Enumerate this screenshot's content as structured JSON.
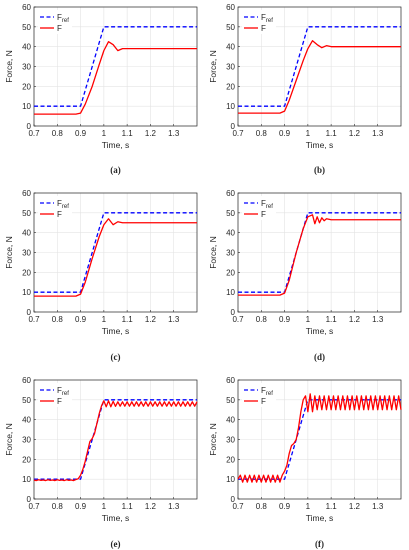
{
  "chart_data": [
    {
      "type": "line",
      "caption": "(a)",
      "xlabel": "Time, s",
      "ylabel": "Force, N",
      "xlim": [
        0.7,
        1.4
      ],
      "ylim": [
        0,
        60
      ],
      "xticks": [
        0.7,
        0.8,
        0.9,
        1,
        1.1,
        1.2,
        1.3
      ],
      "yticks": [
        0,
        10,
        20,
        30,
        40,
        50,
        60
      ],
      "grid": true,
      "legend_placement": "top-left",
      "series": [
        {
          "name": "F ref",
          "name_base": "F",
          "name_sub": "ref",
          "style": "dashed",
          "color": "#0000ff",
          "x": [
            0.7,
            0.9,
            1.0,
            1.4
          ],
          "y": [
            10,
            10,
            50,
            50
          ]
        },
        {
          "name": "F",
          "style": "solid",
          "color": "#ff0000",
          "x": [
            0.7,
            0.88,
            0.9,
            0.92,
            0.95,
            0.98,
            1.0,
            1.02,
            1.04,
            1.06,
            1.08,
            1.1,
            1.4
          ],
          "y": [
            6,
            6,
            6.5,
            11,
            20,
            31,
            38,
            42.5,
            41,
            38,
            39,
            39,
            39
          ]
        }
      ]
    },
    {
      "type": "line",
      "caption": "(b)",
      "xlabel": "Time, s",
      "ylabel": "Force, N",
      "xlim": [
        0.7,
        1.4
      ],
      "ylim": [
        0,
        60
      ],
      "xticks": [
        0.7,
        0.8,
        0.9,
        1,
        1.1,
        1.2,
        1.3
      ],
      "yticks": [
        0,
        10,
        20,
        30,
        40,
        50,
        60
      ],
      "grid": true,
      "legend_placement": "top-left",
      "series": [
        {
          "name": "F ref",
          "name_base": "F",
          "name_sub": "ref",
          "style": "dashed",
          "color": "#0000ff",
          "x": [
            0.7,
            0.9,
            1.0,
            1.4
          ],
          "y": [
            10,
            10,
            50,
            50
          ]
        },
        {
          "name": "F",
          "style": "solid",
          "color": "#ff0000",
          "x": [
            0.7,
            0.88,
            0.9,
            0.92,
            0.95,
            0.98,
            1.0,
            1.02,
            1.04,
            1.06,
            1.08,
            1.1,
            1.4
          ],
          "y": [
            6.5,
            6.5,
            7.5,
            13,
            23,
            33,
            39,
            43,
            41,
            39.5,
            40.5,
            40,
            40
          ]
        }
      ]
    },
    {
      "type": "line",
      "caption": "(c)",
      "xlabel": "Time, s",
      "ylabel": "Force, N",
      "xlim": [
        0.7,
        1.4
      ],
      "ylim": [
        0,
        60
      ],
      "xticks": [
        0.7,
        0.8,
        0.9,
        1,
        1.1,
        1.2,
        1.3
      ],
      "yticks": [
        0,
        10,
        20,
        30,
        40,
        50,
        60
      ],
      "grid": true,
      "legend_placement": "top-left",
      "series": [
        {
          "name": "F ref",
          "name_base": "F",
          "name_sub": "ref",
          "style": "dashed",
          "color": "#0000ff",
          "x": [
            0.7,
            0.9,
            1.0,
            1.4
          ],
          "y": [
            10,
            10,
            50,
            50
          ]
        },
        {
          "name": "F",
          "style": "solid",
          "color": "#ff0000",
          "x": [
            0.7,
            0.88,
            0.9,
            0.92,
            0.95,
            0.98,
            1.0,
            1.02,
            1.04,
            1.06,
            1.08,
            1.1,
            1.4
          ],
          "y": [
            8,
            8,
            9,
            15,
            27,
            38,
            44,
            47,
            44,
            45.5,
            45,
            45,
            45
          ]
        }
      ]
    },
    {
      "type": "line",
      "caption": "(d)",
      "xlabel": "Time, s",
      "ylabel": "Force, N",
      "xlim": [
        0.7,
        1.4
      ],
      "ylim": [
        0,
        60
      ],
      "xticks": [
        0.7,
        0.8,
        0.9,
        1,
        1.1,
        1.2,
        1.3
      ],
      "yticks": [
        0,
        10,
        20,
        30,
        40,
        50,
        60
      ],
      "grid": true,
      "legend_placement": "top-left",
      "series": [
        {
          "name": "F ref",
          "name_base": "F",
          "name_sub": "ref",
          "style": "dashed",
          "color": "#0000ff",
          "x": [
            0.7,
            0.9,
            1.0,
            1.4
          ],
          "y": [
            10,
            10,
            50,
            50
          ]
        },
        {
          "name": "F",
          "style": "solid",
          "color": "#ff0000",
          "x": [
            0.7,
            0.88,
            0.9,
            0.92,
            0.95,
            0.98,
            1.0,
            1.02,
            1.03,
            1.04,
            1.05,
            1.06,
            1.07,
            1.08,
            1.1,
            1.4
          ],
          "y": [
            8.5,
            8.5,
            9.5,
            16,
            30,
            42,
            48,
            49,
            44.5,
            48,
            45,
            47.5,
            46,
            47,
            46.5,
            46.5
          ]
        }
      ]
    },
    {
      "type": "line",
      "caption": "(e)",
      "xlabel": "Time, s",
      "ylabel": "Force, N",
      "xlim": [
        0.7,
        1.4
      ],
      "ylim": [
        0,
        60
      ],
      "xticks": [
        0.7,
        0.8,
        0.9,
        1,
        1.1,
        1.2,
        1.3
      ],
      "yticks": [
        0,
        10,
        20,
        30,
        40,
        50,
        60
      ],
      "grid": true,
      "legend_placement": "top-left",
      "series": [
        {
          "name": "F ref",
          "name_base": "F",
          "name_sub": "ref",
          "style": "dashed",
          "color": "#0000ff",
          "x": [
            0.7,
            0.9,
            1.0,
            1.4
          ],
          "y": [
            10,
            10,
            50,
            50
          ]
        },
        {
          "name": "F",
          "style": "solid",
          "color": "#ff0000",
          "x_start": 0.7,
          "x_step": 0.01,
          "y": [
            9.5,
            9.3,
            9.7,
            9.4,
            9.6,
            9.3,
            9.7,
            9.4,
            9.6,
            9.3,
            9.7,
            9.4,
            9.6,
            9.3,
            9.7,
            9.4,
            9.6,
            9.3,
            9.8,
            10.2,
            12,
            15,
            19,
            24,
            29,
            30.5,
            33,
            38,
            43,
            47,
            49.5,
            46.5,
            49.5,
            46.5,
            49.2,
            46.7,
            49,
            46.8,
            49,
            46.8,
            49,
            46.8,
            49,
            46.8,
            49,
            46.8,
            49,
            46.8,
            49,
            46.8,
            49,
            46.8,
            49,
            46.8,
            49,
            46.8,
            49,
            46.8,
            49,
            46.8,
            49,
            46.8,
            49,
            46.8,
            49,
            46.8,
            49,
            46.8,
            49,
            46.8,
            49
          ]
        }
      ]
    },
    {
      "type": "line",
      "caption": "(f)",
      "xlabel": "Time, s",
      "ylabel": "Force, N",
      "xlim": [
        0.7,
        1.4
      ],
      "ylim": [
        0,
        60
      ],
      "xticks": [
        0.7,
        0.8,
        0.9,
        1,
        1.1,
        1.2,
        1.3
      ],
      "yticks": [
        0,
        10,
        20,
        30,
        40,
        50,
        60
      ],
      "grid": true,
      "legend_placement": "top-left",
      "series": [
        {
          "name": "F ref",
          "name_base": "F",
          "name_sub": "ref",
          "style": "dashed",
          "color": "#0000ff",
          "x": [
            0.7,
            0.9,
            1.0,
            1.4
          ],
          "y": [
            10,
            10,
            50,
            50
          ]
        },
        {
          "name": "F",
          "style": "solid",
          "color": "#ff0000",
          "x_start": 0.7,
          "x_step": 0.01,
          "y": [
            10,
            12,
            8.5,
            12,
            8.5,
            12,
            8.5,
            12,
            8.5,
            12,
            8.5,
            12,
            8.5,
            12,
            8.5,
            12,
            8.5,
            12,
            8.5,
            12,
            14,
            17,
            23,
            27,
            28,
            30,
            36,
            44,
            50,
            52,
            44,
            53,
            44,
            52,
            45,
            52,
            45,
            52,
            45,
            52,
            45,
            52,
            45,
            52,
            45,
            52,
            45,
            52,
            45,
            52,
            45,
            52,
            45,
            52,
            45,
            52,
            45,
            52,
            45,
            52,
            45,
            52,
            45,
            52,
            45,
            52,
            45,
            52,
            45,
            52,
            45
          ]
        }
      ]
    }
  ]
}
